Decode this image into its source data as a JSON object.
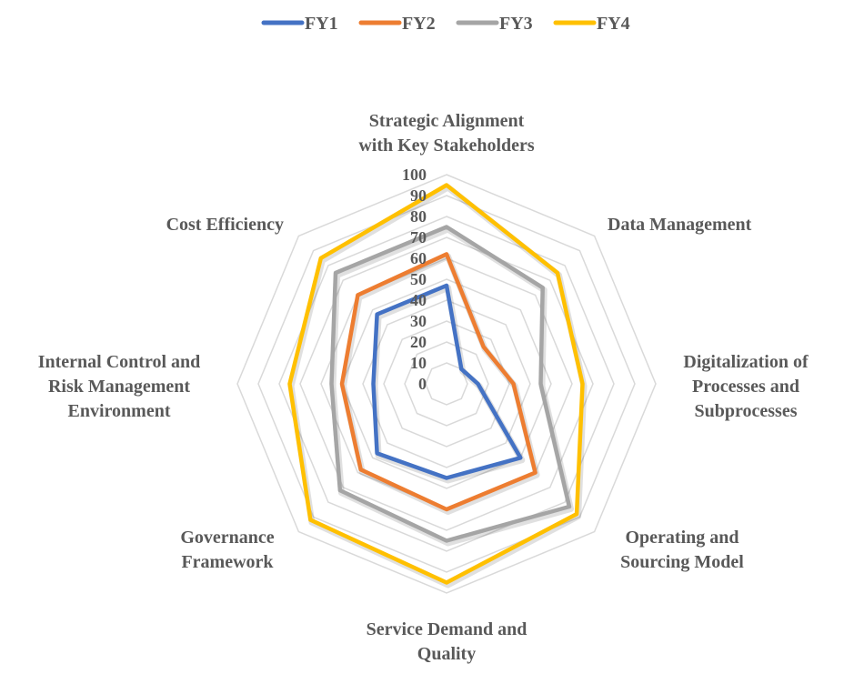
{
  "chart_data": {
    "type": "radar",
    "categories": [
      "Strategic Alignment with Key Stakeholders",
      "Data Management",
      "Digitalization of Processes and Subprocesses",
      "Operating and Sourcing Model",
      "Service Demand and Quality",
      "Governance Framework",
      "Internal Control and Risk Management Environment",
      "Cost Efficiency"
    ],
    "category_lines": [
      [
        "Strategic Alignment",
        "with Key Stakeholders"
      ],
      [
        "Data Management"
      ],
      [
        "Digitalization of",
        "Processes and",
        "Subprocesses"
      ],
      [
        "Operating and",
        "Sourcing Model"
      ],
      [
        "Service Demand and",
        "Quality"
      ],
      [
        "Governance",
        "Framework"
      ],
      [
        "Internal Control and",
        "Risk Management",
        "Environment"
      ],
      [
        "Cost Efficiency"
      ]
    ],
    "series": [
      {
        "name": "FY1",
        "color": "#4472C4",
        "values": [
          47,
          10,
          15,
          50,
          45,
          47,
          35,
          47
        ]
      },
      {
        "name": "FY2",
        "color": "#ED7D31",
        "values": [
          62,
          25,
          32,
          60,
          60,
          58,
          50,
          60
        ]
      },
      {
        "name": "FY3",
        "color": "#A5A5A5",
        "values": [
          75,
          65,
          45,
          83,
          75,
          72,
          55,
          75
        ]
      },
      {
        "name": "FY4",
        "color": "#FFC000",
        "values": [
          95,
          75,
          65,
          88,
          95,
          92,
          75,
          85
        ]
      }
    ],
    "rlim": [
      0,
      100
    ],
    "ticks": [
      "0",
      "10",
      "20",
      "30",
      "40",
      "50",
      "60",
      "70",
      "80",
      "90",
      "100"
    ],
    "grid": true,
    "legend_position": "top"
  }
}
